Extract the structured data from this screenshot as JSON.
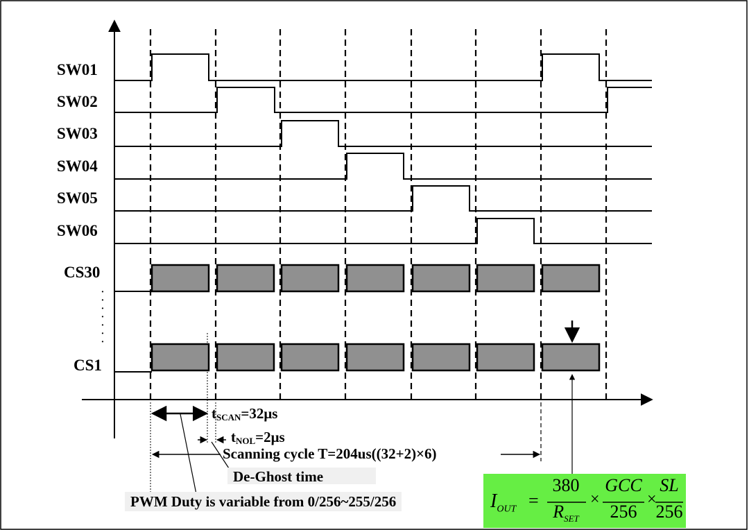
{
  "signals": {
    "sw01": "SW01",
    "sw02": "SW02",
    "sw03": "SW03",
    "sw04": "SW04",
    "sw05": "SW05",
    "sw06": "SW06",
    "cs30": "CS30",
    "cs1": "CS1"
  },
  "annotations": {
    "tscan_prefix": "t",
    "tscan_sub": "SCAN",
    "tscan_value": "=32μs",
    "tnol_prefix": "t",
    "tnol_sub": "NOL",
    "tnol_value": "=2μs",
    "scanning_cycle": "Scanning cycle T=204us((32+2)×6)",
    "deghost": "De-Ghost time",
    "pwm_duty": "PWM Duty is variable from 0/256~255/256"
  },
  "formula": {
    "lhs_main": "I",
    "lhs_sub": "OUT",
    "equals": "=",
    "num1": "380",
    "den1_main": "R",
    "den1_sub": "SET",
    "times1": "×",
    "num2": "GCC",
    "den2": "256",
    "times2": "×",
    "num3": "SL",
    "den3": "256"
  },
  "colors": {
    "pulse_fill": "#909090",
    "formula_bg": "#66ee44",
    "line": "#000000"
  }
}
